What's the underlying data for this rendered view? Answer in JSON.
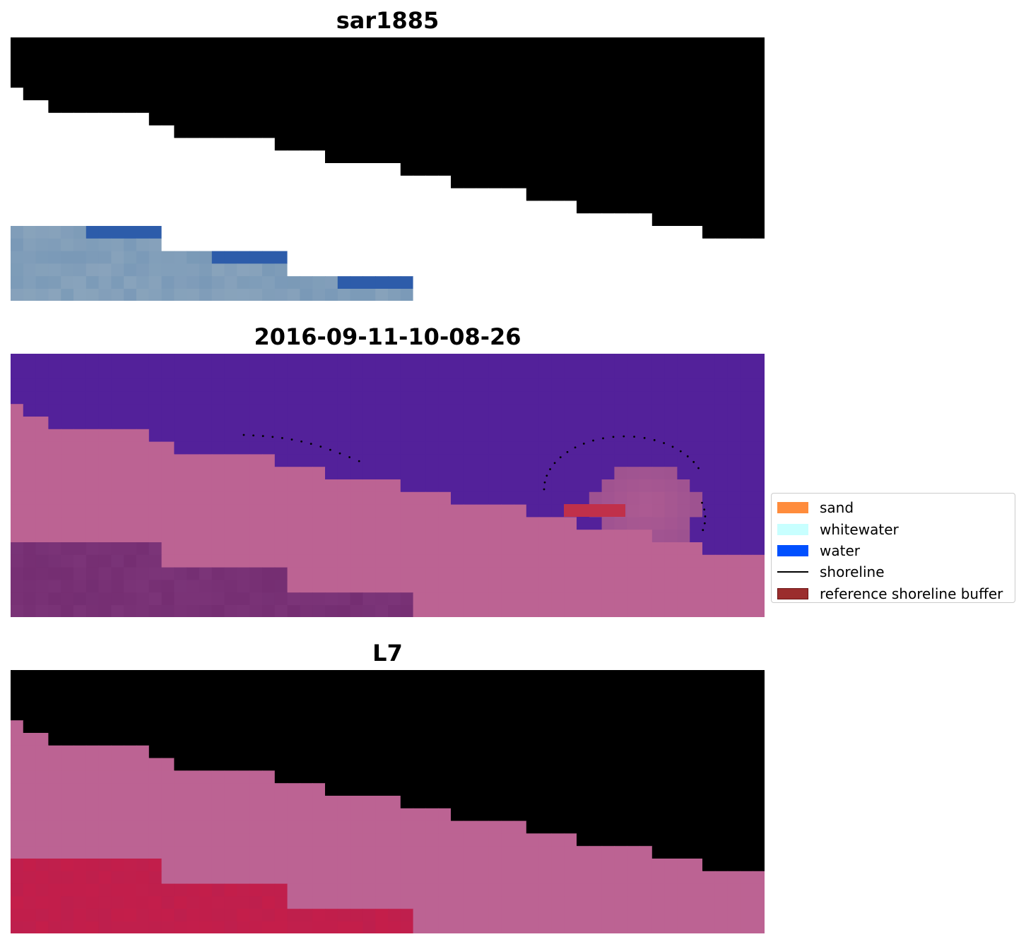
{
  "panels": [
    {
      "title": "sar1885"
    },
    {
      "title": "2016-09-11-10-08-26"
    },
    {
      "title": "L7"
    }
  ],
  "legend": {
    "items": [
      {
        "label": "sand",
        "color": "#ff8c3c",
        "kind": "patch"
      },
      {
        "label": "whitewater",
        "color": "#c8ffff",
        "kind": "patch"
      },
      {
        "label": "water",
        "color": "#0050ff",
        "kind": "patch"
      },
      {
        "label": "shoreline",
        "color": "#000000",
        "kind": "line"
      },
      {
        "label": "reference shoreline buffer",
        "color": "#9b2d2d",
        "kind": "patch"
      }
    ]
  },
  "colors": {
    "masked": "#ffffff",
    "rgb_water": "#4270a8",
    "rgb_sand": "#8aa4bc",
    "rgb_edge": "#2d5caa",
    "class_water": "#53219a",
    "class_land": "#bc6393",
    "class_dark": "#7b3478",
    "class_buffer": "#c0304a",
    "ndwi_water": "#64179e",
    "ndwi_land": "#bc6393",
    "ndwi_red": "#c41e4a",
    "shoreline": "#000000"
  }
}
